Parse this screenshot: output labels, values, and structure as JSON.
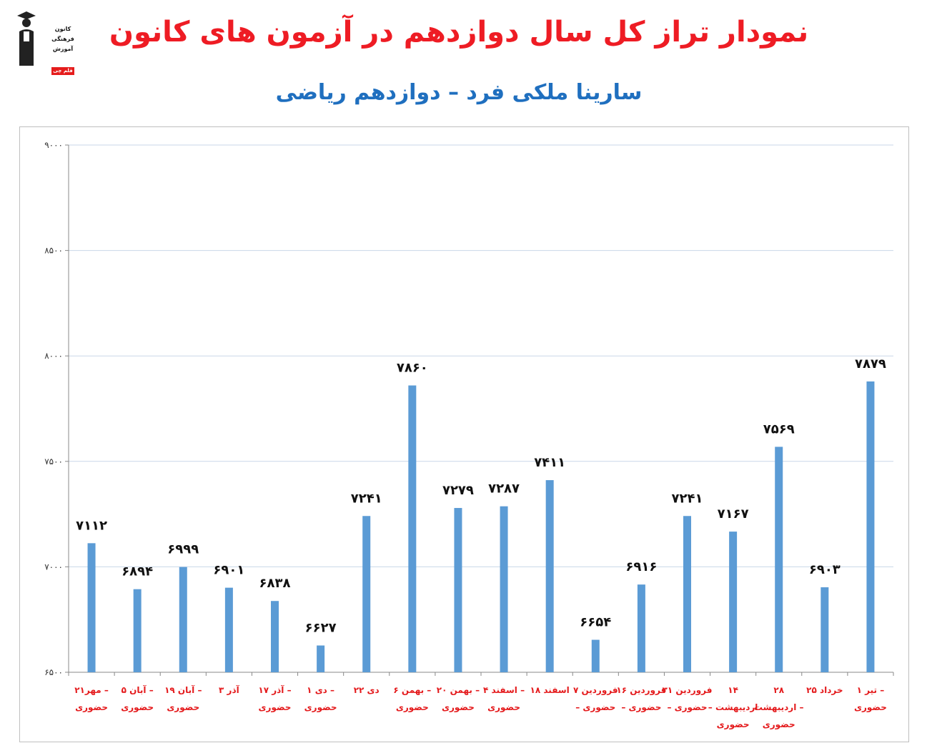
{
  "header": {
    "title": "نمودار تراز کل سال دوازدهم در آزمون های کانون",
    "subtitle": "سارینا ملکی فرد – دوازدهم ریاضی"
  },
  "logo": {
    "lines": [
      "کانون",
      "فرهنگی",
      "آموزش"
    ],
    "badge": "قلم چی"
  },
  "chart_data": {
    "type": "bar",
    "title": "",
    "xlabel": "",
    "ylabel": "",
    "ylim": [
      6500,
      9000
    ],
    "yticks": [
      6500,
      7000,
      7500,
      8000,
      8500,
      9000
    ],
    "ytick_labels": [
      "۶۵۰۰",
      "۷۰۰۰",
      "۷۵۰۰",
      "۸۰۰۰",
      "۸۵۰۰",
      "۹۰۰۰"
    ],
    "grid": true,
    "legend": "none",
    "bar_color": "#5b9bd5",
    "categories": [
      [
        "۲۱مهر –",
        "حضوری"
      ],
      [
        "۵ آبان –",
        "حضوری"
      ],
      [
        "۱۹ آبان –",
        "حضوری"
      ],
      [
        "۳ آذر"
      ],
      [
        "۱۷ آذر –",
        "حضوری"
      ],
      [
        "۱ دی –",
        "حضوری"
      ],
      [
        "۲۲ دی"
      ],
      [
        "۶ بهمن –",
        "حضوری"
      ],
      [
        "۲۰ بهمن –",
        "حضوری"
      ],
      [
        "۴ اسفند –",
        "حضوری"
      ],
      [
        "۱۸ اسفند"
      ],
      [
        "۷ فروردین",
        "– حضوری"
      ],
      [
        "۱۶ فروردین",
        "– حضوری"
      ],
      [
        "۳۱ فروردین",
        "– حضوری"
      ],
      [
        "۱۴",
        "– اردیبهشت",
        "حضوری"
      ],
      [
        "۲۸",
        "اردیبهشت –",
        "حضوری"
      ],
      [
        "۲۵ خرداد"
      ],
      [
        "۱ تیر –",
        "حضوری"
      ]
    ],
    "values": [
      7112,
      6894,
      6999,
      6901,
      6838,
      6627,
      7241,
      7860,
      7279,
      7287,
      7411,
      6654,
      6916,
      7241,
      7167,
      7569,
      6903,
      7879
    ],
    "value_labels": [
      "۷۱۱۲",
      "۶۸۹۴",
      "۶۹۹۹",
      "۶۹۰۱",
      "۶۸۳۸",
      "۶۶۲۷",
      "۷۲۴۱",
      "۷۸۶۰",
      "۷۲۷۹",
      "۷۲۸۷",
      "۷۴۱۱",
      "۶۶۵۴",
      "۶۹۱۶",
      "۷۲۴۱",
      "۷۱۶۷",
      "۷۵۶۹",
      "۶۹۰۳",
      "۷۸۷۹"
    ]
  }
}
